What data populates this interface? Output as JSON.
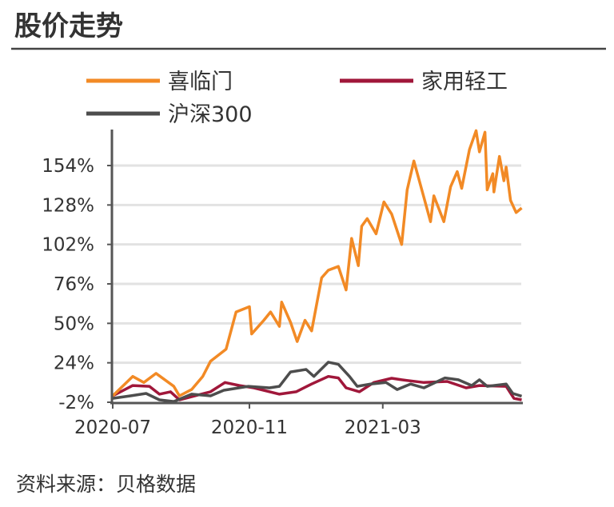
{
  "header": {
    "title": "股价走势"
  },
  "footer": {
    "source": "资料来源：贝格数据"
  },
  "chart_data": {
    "type": "line",
    "title": "股价走势",
    "xlabel": "",
    "ylabel": "",
    "ylim": [
      -2,
      178
    ],
    "yticks": [
      "-2%",
      "24%",
      "50%",
      "76%",
      "102%",
      "128%",
      "154%"
    ],
    "ytick_values": [
      -2,
      24,
      50,
      76,
      102,
      128,
      154
    ],
    "xticks": [
      "2020-07",
      "2020-11",
      "2021-03"
    ],
    "xlim": [
      "2020-07-01",
      "2021-07-04"
    ],
    "grid": "horizontal",
    "legend_position": "top",
    "series": [
      {
        "name": "喜临门",
        "color": "#F28A25",
        "points": [
          [
            "2020-07-01",
            2.2
          ],
          [
            "2020-07-19",
            15
          ],
          [
            "2020-07-29",
            11
          ],
          [
            "2020-08-09",
            17
          ],
          [
            "2020-08-25",
            8.5
          ],
          [
            "2020-08-30",
            2.2
          ],
          [
            "2020-09-10",
            6.4
          ],
          [
            "2020-09-20",
            15
          ],
          [
            "2020-09-27",
            25
          ],
          [
            "2020-10-11",
            33
          ],
          [
            "2020-10-20",
            57.5
          ],
          [
            "2020-11-01",
            61
          ],
          [
            "2020-11-03",
            43
          ],
          [
            "2020-11-14",
            52
          ],
          [
            "2020-11-20",
            57.5
          ],
          [
            "2020-11-28",
            48
          ],
          [
            "2020-11-30",
            64
          ],
          [
            "2020-12-08",
            50.7
          ],
          [
            "2020-12-14",
            38
          ],
          [
            "2020-12-21",
            52
          ],
          [
            "2020-12-27",
            45
          ],
          [
            "2021-01-05",
            80
          ],
          [
            "2021-01-11",
            85
          ],
          [
            "2021-01-20",
            87.5
          ],
          [
            "2021-01-27",
            72
          ],
          [
            "2021-02-01",
            106
          ],
          [
            "2021-02-07",
            88
          ],
          [
            "2021-02-10",
            114
          ],
          [
            "2021-02-15",
            119
          ],
          [
            "2021-02-23",
            109
          ],
          [
            "2021-03-02",
            130
          ],
          [
            "2021-03-09",
            122
          ],
          [
            "2021-03-18",
            102
          ],
          [
            "2021-03-23",
            138
          ],
          [
            "2021-03-29",
            157
          ],
          [
            "2021-04-07",
            133
          ],
          [
            "2021-04-13",
            117
          ],
          [
            "2021-04-16",
            134
          ],
          [
            "2021-04-25",
            117
          ],
          [
            "2021-05-01",
            140
          ],
          [
            "2021-05-07",
            150
          ],
          [
            "2021-05-11",
            139
          ],
          [
            "2021-05-18",
            164.5
          ],
          [
            "2021-05-24",
            177
          ],
          [
            "2021-05-27",
            163
          ],
          [
            "2021-06-01",
            176
          ],
          [
            "2021-06-03",
            138
          ],
          [
            "2021-06-08",
            148.6
          ],
          [
            "2021-06-09",
            136.6
          ],
          [
            "2021-06-14",
            160
          ],
          [
            "2021-06-18",
            144
          ],
          [
            "2021-06-20",
            153
          ],
          [
            "2021-06-24",
            131
          ],
          [
            "2021-06-29",
            123
          ],
          [
            "2021-07-04",
            126
          ]
        ]
      },
      {
        "name": "家用轻工",
        "color": "#A0173A",
        "points": [
          [
            "2020-07-01",
            2.2
          ],
          [
            "2020-07-19",
            9
          ],
          [
            "2020-08-03",
            8.5
          ],
          [
            "2020-08-12",
            3.3
          ],
          [
            "2020-08-22",
            4.9
          ],
          [
            "2020-08-30",
            -0.4
          ],
          [
            "2020-09-27",
            4.9
          ],
          [
            "2020-10-10",
            11
          ],
          [
            "2020-10-23",
            9
          ],
          [
            "2020-11-05",
            7.5
          ],
          [
            "2020-11-28",
            3.3
          ],
          [
            "2020-12-13",
            4.9
          ],
          [
            "2020-12-27",
            10
          ],
          [
            "2021-01-11",
            15
          ],
          [
            "2021-01-20",
            14
          ],
          [
            "2021-01-27",
            7.5
          ],
          [
            "2021-02-08",
            4.9
          ],
          [
            "2021-02-21",
            11
          ],
          [
            "2021-03-09",
            13.8
          ],
          [
            "2021-03-18",
            12.8
          ],
          [
            "2021-04-07",
            11
          ],
          [
            "2021-04-28",
            11.7
          ],
          [
            "2021-05-15",
            7.5
          ],
          [
            "2021-05-27",
            9
          ],
          [
            "2021-06-20",
            8.5
          ],
          [
            "2021-06-27",
            0.6
          ],
          [
            "2021-07-04",
            -0.4
          ]
        ]
      },
      {
        "name": "沪深300",
        "color": "#4D4D4D",
        "points": [
          [
            "2020-07-01",
            0.6
          ],
          [
            "2020-07-17",
            2.2
          ],
          [
            "2020-07-31",
            3.8
          ],
          [
            "2020-08-12",
            -0.4
          ],
          [
            "2020-08-25",
            -1.5
          ],
          [
            "2020-09-10",
            3.3
          ],
          [
            "2020-09-27",
            2.2
          ],
          [
            "2020-10-09",
            5.9
          ],
          [
            "2020-10-31",
            8.5
          ],
          [
            "2020-11-19",
            7.5
          ],
          [
            "2020-11-28",
            8.5
          ],
          [
            "2020-12-08",
            18
          ],
          [
            "2020-12-22",
            19.6
          ],
          [
            "2020-12-29",
            15
          ],
          [
            "2021-01-11",
            24.4
          ],
          [
            "2021-01-20",
            23
          ],
          [
            "2021-01-30",
            15
          ],
          [
            "2021-02-06",
            8.5
          ],
          [
            "2021-02-18",
            10
          ],
          [
            "2021-03-04",
            11
          ],
          [
            "2021-03-14",
            6.4
          ],
          [
            "2021-03-26",
            10
          ],
          [
            "2021-04-07",
            7.5
          ],
          [
            "2021-04-26",
            14
          ],
          [
            "2021-05-08",
            12.8
          ],
          [
            "2021-05-20",
            9
          ],
          [
            "2021-05-27",
            12.8
          ],
          [
            "2021-06-03",
            8.5
          ],
          [
            "2021-06-20",
            10
          ],
          [
            "2021-06-26",
            3.8
          ],
          [
            "2021-07-04",
            2
          ]
        ]
      }
    ]
  }
}
